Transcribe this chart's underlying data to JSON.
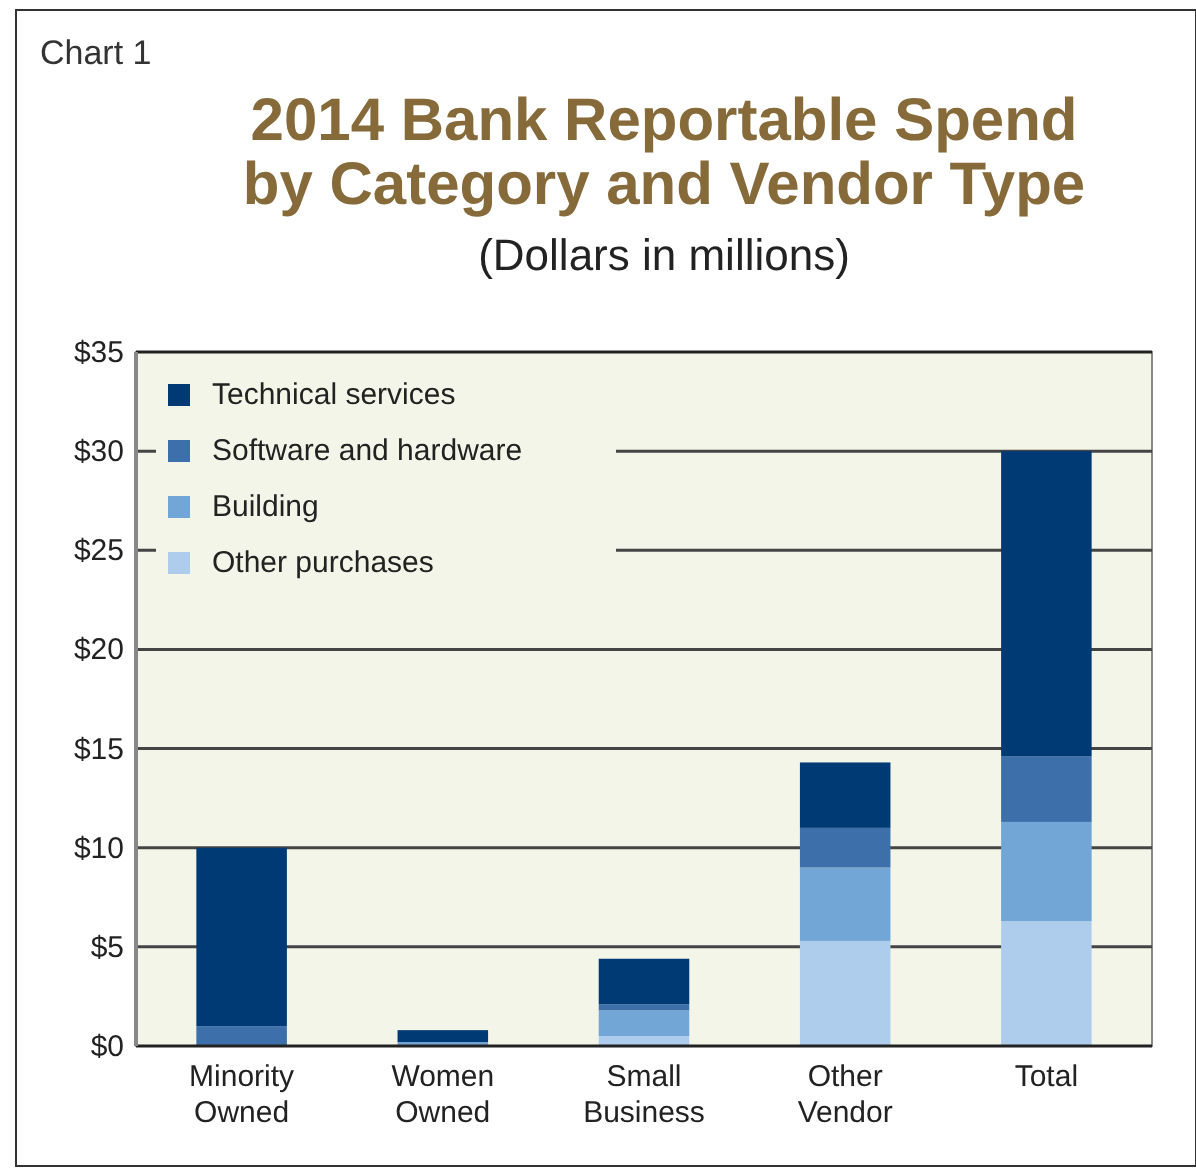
{
  "chart_data": {
    "type": "bar",
    "title": "2014 Bank Reportable Spend\nby Category and Vendor Type",
    "subtitle": "(Dollars in millions)",
    "annotations": [
      "Chart 1"
    ],
    "categories": [
      "Minority\nOwned",
      "Women\nOwned",
      "Small\nBusiness",
      "Other\nVendor",
      "Total"
    ],
    "stacked": true,
    "series": [
      {
        "name": "Other purchases",
        "color": "#aecdec",
        "values": [
          0,
          0,
          0.5,
          5.3,
          6.3
        ]
      },
      {
        "name": "Building",
        "color": "#72a6d6",
        "values": [
          0,
          0.2,
          1.3,
          3.7,
          5.0
        ]
      },
      {
        "name": "Software and hardware",
        "color": "#3d70ab",
        "values": [
          1.0,
          0,
          0.3,
          2.0,
          3.3
        ]
      },
      {
        "name": "Technical services",
        "color": "#003a75",
        "values": [
          9.0,
          0.6,
          2.3,
          3.3,
          15.4
        ]
      }
    ],
    "ylim": [
      0,
      35
    ],
    "yticks": [
      {
        "value": 0,
        "label": "$0"
      },
      {
        "value": 5,
        "label": "$5"
      },
      {
        "value": 10,
        "label": "$10"
      },
      {
        "value": 15,
        "label": "$15"
      },
      {
        "value": 20,
        "label": "$20"
      },
      {
        "value": 25,
        "label": "$25"
      },
      {
        "value": 30,
        "label": "$30"
      },
      {
        "value": 35,
        "label": "$35"
      }
    ],
    "grid": "y",
    "legend": "top left"
  }
}
